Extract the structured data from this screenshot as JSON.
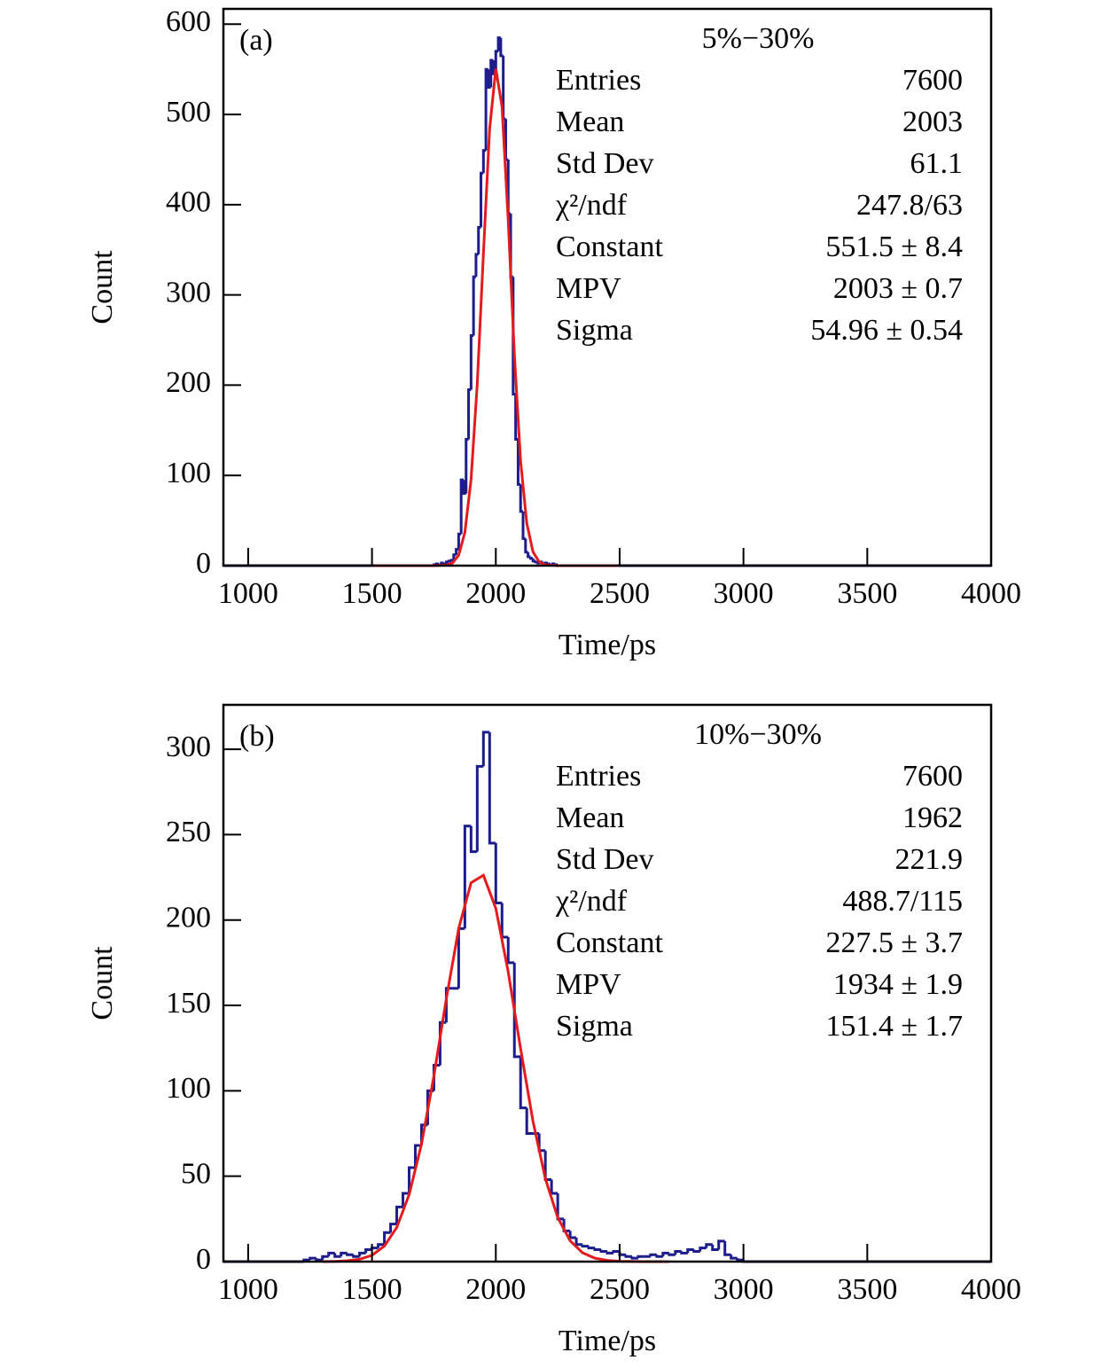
{
  "chart_data": [
    {
      "type": "histogram",
      "panel_label": "(a)",
      "xlabel": "Time/ps",
      "ylabel": "Count",
      "bins": [
        900,
        1750,
        1760,
        1770,
        1780,
        1790,
        1800,
        1810,
        1820,
        1830,
        1840,
        1850,
        1860,
        1870,
        1880,
        1890,
        1900,
        1910,
        1920,
        1930,
        1940,
        1950,
        1960,
        1970,
        1980,
        1990,
        2000,
        2010,
        2020,
        2030,
        2040,
        2050,
        2060,
        2070,
        2080,
        2090,
        2100,
        2110,
        2120,
        2130,
        2140,
        2150,
        2160,
        2170,
        2180,
        2190,
        2200,
        2210,
        2220,
        2230,
        2240,
        2250,
        4000
      ],
      "values": [
        0,
        1,
        2,
        1,
        3,
        2,
        4,
        5,
        6,
        12,
        18,
        35,
        95,
        80,
        140,
        195,
        255,
        320,
        345,
        375,
        435,
        460,
        550,
        530,
        560,
        545,
        570,
        585,
        565,
        495,
        450,
        390,
        320,
        190,
        140,
        90,
        60,
        30,
        15,
        10,
        8,
        5,
        4,
        3,
        4,
        2,
        3,
        2,
        1,
        2,
        1,
        0
      ],
      "color": "#1c1c8a",
      "fit": {
        "x": [
          1500,
          1700,
          1750,
          1800,
          1825,
          1850,
          1875,
          1900,
          1925,
          1950,
          1975,
          2000,
          2025,
          2050,
          2075,
          2100,
          2125,
          2150,
          2175,
          2200,
          2250,
          2300,
          2500
        ],
        "values": [
          0,
          0,
          0,
          0.6,
          2.9,
          11.5,
          36.7,
          95.3,
          201,
          346,
          484,
          550.7,
          509,
          383,
          234,
          116,
          47,
          15.4,
          4.1,
          0.9,
          0,
          0,
          0
        ],
        "color": "#e41a1c"
      },
      "stats": {
        "title": "5%−30%",
        "rows": [
          [
            "Entries",
            "7600"
          ],
          [
            "Mean",
            "2003"
          ],
          [
            "Std Dev",
            "61.1"
          ],
          [
            "χ²/ndf",
            "247.8/63"
          ],
          [
            "Constant",
            "551.5 ± 8.4"
          ],
          [
            "MPV",
            "2003 ± 0.7"
          ],
          [
            "Sigma",
            "54.96 ± 0.54"
          ]
        ]
      },
      "xlim": [
        900,
        4000
      ],
      "xticks": [
        1000,
        1500,
        2000,
        2500,
        3000,
        3500,
        4000
      ],
      "ylim": [
        0,
        617
      ],
      "yticks": [
        0,
        100,
        200,
        300,
        400,
        500,
        600
      ]
    },
    {
      "type": "histogram",
      "panel_label": "(b)",
      "xlabel": "Time/ps",
      "ylabel": "Count",
      "bins": [
        900,
        1200,
        1225,
        1250,
        1275,
        1300,
        1325,
        1350,
        1375,
        1400,
        1425,
        1450,
        1475,
        1500,
        1525,
        1550,
        1575,
        1600,
        1625,
        1650,
        1675,
        1700,
        1725,
        1750,
        1775,
        1800,
        1825,
        1850,
        1875,
        1900,
        1925,
        1950,
        1975,
        2000,
        2025,
        2050,
        2075,
        2100,
        2125,
        2150,
        2175,
        2200,
        2225,
        2250,
        2275,
        2300,
        2325,
        2350,
        2375,
        2400,
        2425,
        2450,
        2475,
        2500,
        2525,
        2550,
        2575,
        2600,
        2625,
        2650,
        2675,
        2700,
        2725,
        2750,
        2775,
        2800,
        2825,
        2850,
        2875,
        2900,
        2925,
        2950,
        2975,
        3000,
        4000
      ],
      "values": [
        0,
        0,
        1,
        2,
        1,
        3,
        5,
        3,
        5,
        4,
        3,
        5,
        7,
        8,
        10,
        17,
        22,
        32,
        40,
        55,
        68,
        80,
        100,
        115,
        140,
        160,
        160,
        195,
        255,
        240,
        290,
        310,
        245,
        210,
        190,
        175,
        120,
        90,
        75,
        75,
        65,
        48,
        40,
        25,
        18,
        14,
        10,
        9,
        8,
        7,
        6,
        5,
        6,
        4,
        3,
        2,
        3,
        3,
        4,
        3,
        5,
        4,
        6,
        5,
        7,
        6,
        8,
        10,
        7,
        12,
        4,
        2,
        1,
        0
      ],
      "color": "#1c1c8a",
      "fit": {
        "x": [
          1300,
          1350,
          1400,
          1450,
          1500,
          1550,
          1600,
          1650,
          1700,
          1750,
          1800,
          1850,
          1900,
          1950,
          2000,
          2050,
          2100,
          2150,
          2200,
          2250,
          2300,
          2350,
          2400,
          2450,
          2500,
          2600,
          2700
        ],
        "values": [
          0,
          0.1,
          0.5,
          1.4,
          3.7,
          9.1,
          20,
          39.2,
          68.9,
          108.7,
          153.8,
          195,
          221.8,
          226.2,
          206.8,
          169.7,
          124.7,
          82.2,
          48.6,
          25.8,
          12.2,
          5.2,
          2,
          0.7,
          0.2,
          0,
          0
        ],
        "color": "#e41a1c"
      },
      "stats": {
        "title": "10%−30%",
        "rows": [
          [
            "Entries",
            "7600"
          ],
          [
            "Mean",
            "1962"
          ],
          [
            "Std Dev",
            "221.9"
          ],
          [
            "χ²/ndf",
            "488.7/115"
          ],
          [
            "Constant",
            "227.5 ± 3.7"
          ],
          [
            "MPV",
            "1934 ± 1.9"
          ],
          [
            "Sigma",
            "151.4 ± 1.7"
          ]
        ]
      },
      "xlim": [
        900,
        4000
      ],
      "xticks": [
        1000,
        1500,
        2000,
        2500,
        3000,
        3500,
        4000
      ],
      "ylim": [
        0,
        326
      ],
      "yticks": [
        0,
        50,
        100,
        150,
        200,
        250,
        300
      ]
    }
  ]
}
